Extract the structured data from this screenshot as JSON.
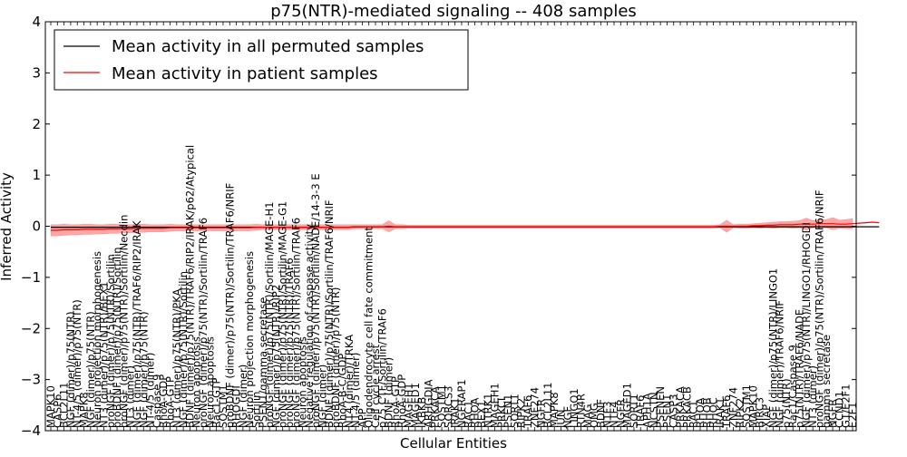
{
  "chart_data": {
    "type": "line",
    "title": "p75(NTR)-mediated signaling -- 408 samples",
    "xlabel": "Cellular Entities",
    "ylabel": "Inferred Activity",
    "ylim": [
      -4,
      4
    ],
    "yticks": [
      "4",
      "3",
      "2",
      "1",
      "0",
      "−1",
      "−2",
      "−3",
      "−4"
    ],
    "grid": false,
    "legend_position": "top-left",
    "legend": [
      {
        "label": "Mean activity in all permuted samples",
        "color": "#000000"
      },
      {
        "label": "Mean activity in patient samples",
        "color": "#ff0000"
      }
    ],
    "categories": [
      "MAPK10",
      "CASP6",
      "BCL2L11",
      "NGF (dimer)/p75(NTR)",
      "NT-4/5 (dimer)/p75(NTR)",
      "MAPK8",
      "NGF (dimer)/p75(NTR)",
      "Neuron projection morphogenesis",
      "NT3 (dimer)/p75(NTR)/BEX1",
      "proNGF (dimer)/p75(NTR)/Sortilin",
      "proBDNF (dimer)/p75(NTR)/Sortilin",
      "proNGF (dimer)/p75(NTR)/Sortilin/Necdin",
      "NT3 (dimer)",
      "NGF (dimer)/p75(NTR)/TRAF6/RIP2/IRAK",
      "NGF (dimer)/p75(NTR)",
      "NT-4/5 (dimer)",
      "Caspase 9",
      "RhoA-GDP",
      "RhoA-GTP",
      "NT3 (dimer)/p75(NTR)/PKA",
      "NGF (dimer)/p75(NTR)/Sortilin",
      "BDNF (dimer)/p75(NTR)/TRAF6/RIP2/IRAK/p62/Atypical",
      "Neuron apoptosis",
      "proNGF (dimer)/p75(NTR)/Sortilin/TRAF6",
      "Neuron apoptosis",
      "Rac1-GTP",
      "SQSTM1",
      "proBDNF (dimer)/p75(NTR)/Sortilin/TRAF6/NRIF",
      "RHOGDI",
      "NGF (dimer)",
      "Neuron projection morphogenesis",
      "Sortilin",
      "PSEN1/gamma secretase",
      "proNGF (dimer)/p75(NTR)/Sortilin/MAGE-H1",
      "NGF (dimer)/p75(NTR)/RIP2",
      "proNGF (dimer)/p75(NTR)/Sortilin/MAGE-G1",
      "proNGF (dimer)/p75(NTR)/TRAF6",
      "proNGF (dimer)/p75(NTR)/Sortilin/TRAF6",
      "Neuron apoptosis",
      "Negative regulation of caspase activity",
      "proNGF (dimer)/p75(NTR)/Sortilin/NADE/14-3-3 E",
      "NGF (dimer)",
      "BDNF (dimer)/p75(NTR)/Sortilin/TRAF6/NRIF",
      "proBDNF (dimer)/p75(NTR)",
      "RhoA-B-C/GDP",
      "NT4 (dimer)/TRKA",
      "NT-4/5 (dimer)",
      "APP",
      "Oligodendrocyte cell fate commitment",
      "Cell cycle arrest",
      "p75 CTF/Sortilin/TRAF6",
      "BDNF (dimer)",
      "RhoA-GTP",
      "RhoA-GDP",
      "MAGEH1",
      "MAGED1",
      "IKBKB",
      "ARHGDIA",
      "PRKACA",
      "SQSTM1",
      "SORCS3",
      "IRAK1",
      "NGFRAP1",
      "RAC1",
      "RHOA",
      "BEX1",
      "NTRK1",
      "MAGEH1",
      "PRKCI",
      "PSEN1",
      "SORT1",
      "RIPK2",
      "TRAF6",
      "ZNF274",
      "NGFR",
      "BCL2L11",
      "MAPK8",
      "JUN",
      "NGF",
      "LINGO1",
      "RTN4R",
      "MAG",
      "OMG",
      "BDNF",
      "NTF3",
      "NTF4",
      "NGFR",
      "MAGED1",
      "SORT1",
      "TRAF6",
      "APH1A",
      "NCSTN",
      "PSENEN",
      "PSEN1",
      "CASP3",
      "PRKACA",
      "PRKACB",
      "RAC1",
      "RHOA",
      "RHOB",
      "RHOC",
      "IRAK1",
      "TRAF6",
      "ZNF274",
      "RIPK2",
      "SQSTM1",
      "MAPK10",
      "BIRC3",
      "XIAP",
      "NGF (dimer)/p75(NTR)/LINGO1",
      "NGF (dimer)/TRAF6/NRIF",
      "p75(NTR)",
      "Rac1/Caspase 9",
      "p75(NTR)/TRAF6/NADE",
      "NGF (dimer)/p75(NTR)/LINGO1/RHOGDI",
      "NT3 (dimer)",
      "proNGF (dimer)/p75(NTR)/Sortilin/TRAF6/NRIF",
      "gamma secretase",
      "NGFR",
      "CCND1",
      "G1/E2F1",
      "E2F1"
    ],
    "mean_permuted": [
      -0.02,
      -0.02,
      -0.02,
      -0.02,
      -0.02,
      -0.02,
      -0.02,
      -0.02,
      -0.02,
      -0.02,
      -0.02,
      -0.02,
      -0.02,
      -0.02,
      -0.02,
      -0.02,
      -0.02,
      -0.02,
      -0.02,
      -0.02,
      -0.02,
      -0.02,
      -0.02,
      -0.02,
      -0.02,
      -0.02,
      -0.02,
      -0.02,
      -0.02,
      -0.02,
      -0.02,
      -0.02,
      -0.02,
      -0.02,
      -0.02,
      -0.02,
      -0.02,
      -0.02,
      -0.02,
      -0.02,
      -0.02,
      -0.02,
      -0.02,
      -0.02,
      -0.02,
      -0.02,
      -0.01,
      -0.01,
      -0.01,
      -0.01,
      -0.01,
      -0.01,
      -0.01,
      -0.01,
      -0.01,
      -0.01,
      -0.01,
      -0.01,
      -0.01,
      -0.01,
      -0.01,
      -0.01,
      -0.01,
      -0.01,
      -0.01,
      -0.01,
      -0.01,
      -0.01,
      -0.01,
      -0.01,
      -0.01,
      -0.01,
      -0.01,
      -0.01,
      -0.01,
      -0.01,
      -0.01,
      -0.01,
      -0.01,
      -0.01,
      -0.01,
      -0.01,
      -0.01,
      -0.01,
      -0.01,
      -0.01,
      -0.01,
      -0.01,
      -0.01,
      -0.01,
      -0.01,
      -0.01,
      -0.01,
      -0.01,
      -0.01,
      -0.01,
      -0.01,
      -0.01,
      -0.01,
      -0.01,
      -0.01,
      -0.01,
      -0.01,
      -0.01,
      -0.01,
      -0.01,
      -0.01,
      -0.01,
      -0.01,
      -0.01,
      -0.01,
      -0.01,
      -0.01,
      -0.01,
      -0.01,
      -0.01,
      -0.01,
      -0.01,
      -0.01,
      -0.01,
      -0.01,
      -0.01,
      -0.01,
      -0.01,
      -0.01,
      -0.01
    ],
    "mean_patient": [
      -0.08,
      -0.08,
      -0.07,
      -0.07,
      -0.07,
      -0.06,
      -0.06,
      -0.06,
      -0.06,
      -0.05,
      -0.05,
      -0.05,
      -0.05,
      -0.04,
      -0.04,
      -0.04,
      -0.04,
      -0.04,
      -0.03,
      -0.03,
      -0.03,
      -0.03,
      -0.03,
      -0.03,
      -0.03,
      -0.03,
      -0.03,
      -0.03,
      -0.03,
      -0.03,
      -0.03,
      -0.02,
      -0.02,
      -0.02,
      -0.02,
      -0.02,
      -0.02,
      -0.02,
      -0.02,
      -0.02,
      -0.02,
      -0.02,
      -0.02,
      -0.02,
      -0.02,
      -0.02,
      -0.01,
      -0.01,
      -0.01,
      -0.01,
      -0.01,
      0.0,
      -0.01,
      -0.01,
      -0.01,
      -0.01,
      -0.01,
      -0.01,
      -0.01,
      -0.01,
      -0.01,
      -0.01,
      -0.01,
      -0.01,
      -0.01,
      -0.01,
      -0.01,
      -0.01,
      -0.01,
      -0.01,
      -0.01,
      -0.01,
      -0.01,
      -0.01,
      -0.01,
      -0.01,
      -0.01,
      -0.01,
      -0.01,
      -0.01,
      -0.01,
      -0.01,
      -0.01,
      -0.01,
      -0.01,
      -0.01,
      -0.01,
      -0.01,
      -0.01,
      -0.01,
      -0.01,
      -0.01,
      -0.01,
      -0.01,
      -0.01,
      -0.01,
      -0.01,
      -0.01,
      -0.01,
      -0.01,
      -0.01,
      0.0,
      0.0,
      0.0,
      0.0,
      0.0,
      0.01,
      0.01,
      0.02,
      0.02,
      0.03,
      0.03,
      0.03,
      0.04,
      0.04,
      0.04,
      0.05,
      0.05,
      0.05,
      0.04,
      0.04,
      0.05,
      0.06,
      0.07,
      0.08,
      0.07
    ],
    "patient_spread": [
      0.11,
      0.11,
      0.11,
      0.1,
      0.1,
      0.1,
      0.1,
      0.09,
      0.09,
      0.09,
      0.09,
      0.08,
      0.08,
      0.08,
      0.08,
      0.07,
      0.07,
      0.07,
      0.07,
      0.06,
      0.06,
      0.06,
      0.06,
      0.06,
      0.06,
      0.06,
      0.06,
      0.06,
      0.06,
      0.06,
      0.06,
      0.06,
      0.05,
      0.05,
      0.05,
      0.05,
      0.05,
      0.05,
      0.05,
      0.05,
      0.05,
      0.05,
      0.05,
      0.05,
      0.05,
      0.05,
      0.04,
      0.04,
      0.04,
      0.04,
      0.04,
      0.11,
      0.04,
      0.04,
      0.03,
      0.03,
      0.03,
      0.03,
      0.03,
      0.03,
      0.03,
      0.03,
      0.03,
      0.03,
      0.03,
      0.03,
      0.03,
      0.03,
      0.03,
      0.03,
      0.03,
      0.03,
      0.03,
      0.03,
      0.03,
      0.03,
      0.03,
      0.03,
      0.03,
      0.03,
      0.03,
      0.03,
      0.03,
      0.03,
      0.03,
      0.03,
      0.03,
      0.03,
      0.03,
      0.03,
      0.03,
      0.03,
      0.03,
      0.03,
      0.03,
      0.03,
      0.03,
      0.03,
      0.03,
      0.03,
      0.03,
      0.03,
      0.12,
      0.03,
      0.04,
      0.04,
      0.04,
      0.05,
      0.05,
      0.06,
      0.06,
      0.06,
      0.07,
      0.07,
      0.12,
      0.07,
      0.08,
      0.08,
      0.12,
      0.08,
      0.09,
      0.1,
      0.11,
      0.12,
      0.13,
      0.12
    ],
    "permuted_spread": 0.02
  }
}
